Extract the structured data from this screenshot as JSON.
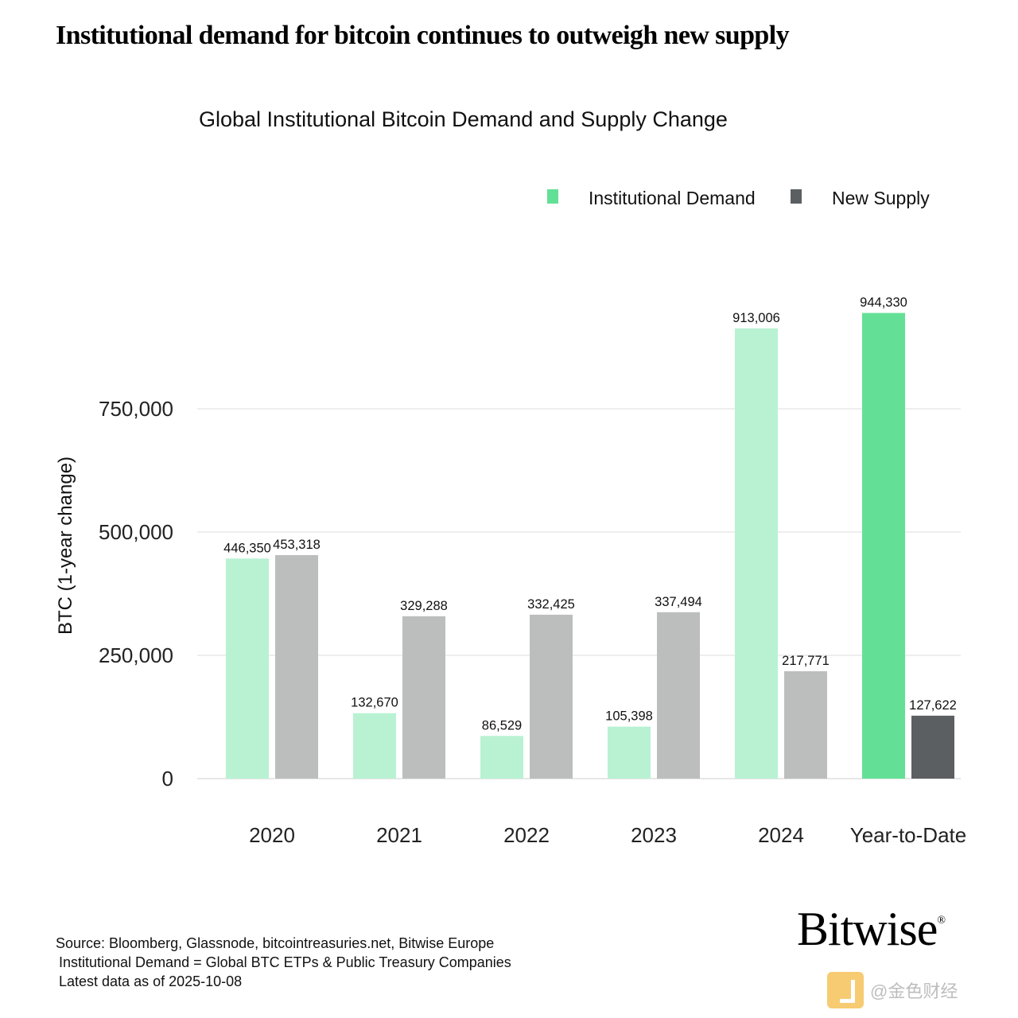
{
  "headline": "Institutional demand for bitcoin continues to outweigh new supply",
  "chart_data": {
    "type": "bar",
    "title": "Global Institutional Bitcoin Demand and Supply Change",
    "xlabel": "",
    "ylabel": "BTC (1-year change)",
    "ylim": [
      0,
      1000000
    ],
    "yticks": [
      0,
      250000,
      500000,
      750000
    ],
    "ytick_labels": [
      "0",
      "250,000",
      "500,000",
      "750,000"
    ],
    "grid": true,
    "legend_position": "top-right",
    "categories": [
      "2020",
      "2021",
      "2022",
      "2023",
      "2024",
      "Year-to-Date"
    ],
    "series": [
      {
        "name": "Institutional Demand",
        "color": "#b8f2d2",
        "highlight_color": "#63e095",
        "values": [
          446350,
          132670,
          86529,
          105398,
          913006,
          944330
        ],
        "labels": [
          "446,350",
          "132,670",
          "86,529",
          "105,398",
          "913,006",
          "944,330"
        ]
      },
      {
        "name": "New Supply",
        "color": "#bcbebe",
        "highlight_color": "#5c5f61",
        "values": [
          453318,
          329288,
          332425,
          337494,
          217771,
          127622
        ],
        "labels": [
          "453,318",
          "329,288",
          "332,425",
          "337,494",
          "217,771",
          "127,622"
        ]
      }
    ],
    "highlight_category": "Year-to-Date"
  },
  "footer": {
    "source": "Source: Bloomberg, Glassnode, bitcointreasuries.net, Bitwise Europe",
    "definition": "Institutional Demand = Global BTC ETPs & Public Treasury Companies",
    "latest": "Latest data as of 2025-10-08"
  },
  "brand": {
    "name": "Bitwise",
    "mark": "®"
  },
  "watermark": {
    "text": "@金色财经"
  }
}
